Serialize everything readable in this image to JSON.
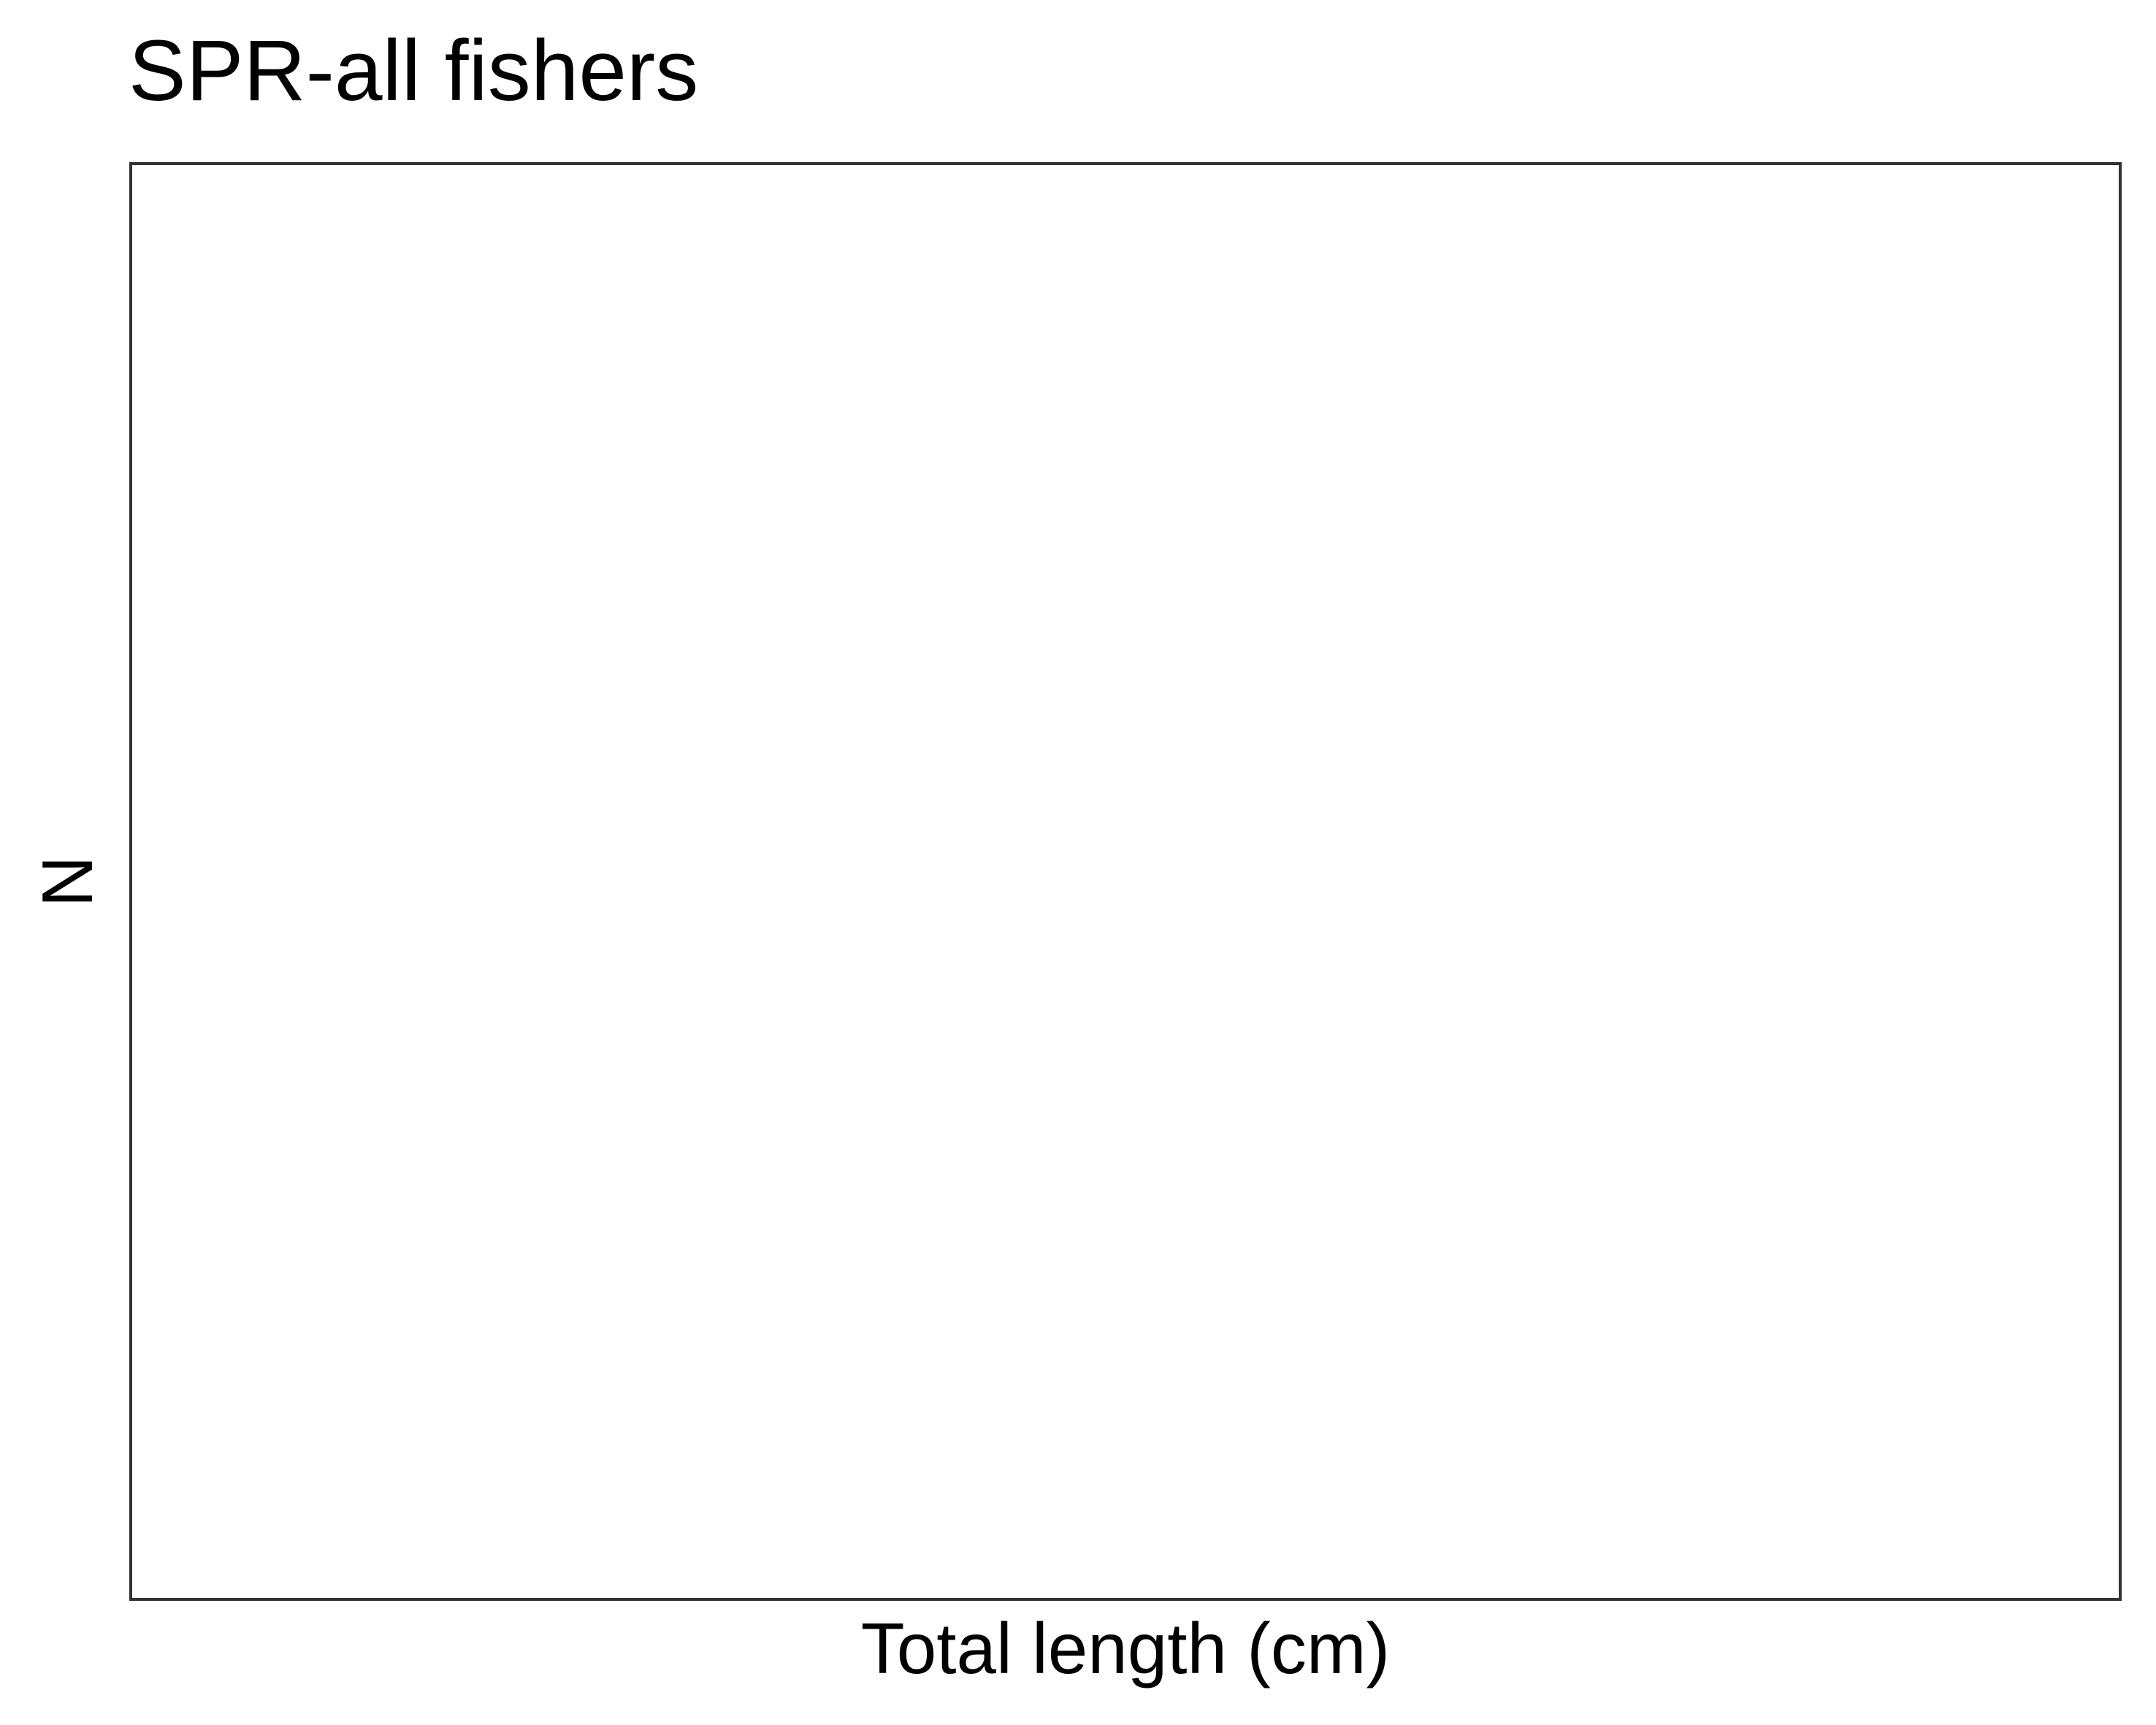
{
  "chart_data": {
    "type": "bar",
    "title": "SPR-all fishers",
    "xlabel": "Total length (cm)",
    "ylabel": "N",
    "categories": [],
    "values": [],
    "grid": false,
    "legend": "none",
    "colors": {
      "panel_border": "#333333",
      "background": "#ffffff",
      "text": "#000000"
    }
  }
}
